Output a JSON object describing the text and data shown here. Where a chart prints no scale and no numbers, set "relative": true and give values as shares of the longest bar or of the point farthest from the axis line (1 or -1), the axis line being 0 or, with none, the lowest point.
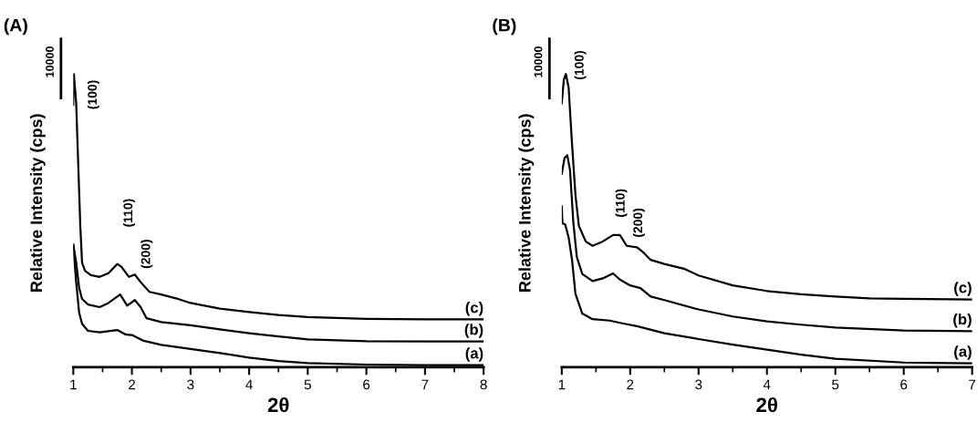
{
  "chart_data": [
    {
      "type": "line",
      "title": "(A)",
      "xlabel": "2θ",
      "ylabel": "Relative Intensity (cps)",
      "relative": true,
      "xlim": [
        1,
        8
      ],
      "xticks": [
        1,
        2,
        3,
        4,
        5,
        6,
        7,
        8
      ],
      "tick_labels": "x",
      "grid": false,
      "legend": false,
      "annotations": [
        "10000",
        "(100)",
        "(110)",
        "(200)"
      ],
      "series": [
        {
          "name": "(a)",
          "color": "#000000",
          "x": [
            1.0,
            1.05,
            1.1,
            1.15,
            1.25,
            1.45,
            1.75,
            1.9,
            2.0,
            2.2,
            2.5,
            3.0,
            3.5,
            4.0,
            4.5,
            5.0,
            6.0,
            7.0,
            8.0
          ],
          "values": [
            0.414,
            0.29,
            0.186,
            0.148,
            0.124,
            0.119,
            0.127,
            0.111,
            0.11,
            0.09,
            0.076,
            0.062,
            0.048,
            0.033,
            0.021,
            0.014,
            0.009,
            0.007,
            0.007
          ]
        },
        {
          "name": "(b)",
          "color": "#000000",
          "x": [
            1.0,
            1.05,
            1.1,
            1.15,
            1.25,
            1.45,
            1.6,
            1.8,
            1.92,
            2.05,
            2.15,
            2.25,
            2.5,
            3.0,
            3.5,
            4.0,
            4.5,
            5.0,
            6.0,
            7.0,
            8.0
          ],
          "values": [
            0.419,
            0.357,
            0.271,
            0.233,
            0.214,
            0.205,
            0.219,
            0.248,
            0.21,
            0.229,
            0.205,
            0.167,
            0.154,
            0.143,
            0.129,
            0.116,
            0.105,
            0.095,
            0.089,
            0.088,
            0.088
          ]
        },
        {
          "name": "(c)",
          "color": "#000000",
          "x": [
            1.0,
            1.01,
            1.05,
            1.08,
            1.12,
            1.15,
            1.2,
            1.3,
            1.45,
            1.6,
            1.75,
            1.82,
            1.95,
            2.05,
            2.15,
            2.3,
            2.5,
            2.75,
            3.0,
            3.5,
            4.0,
            4.5,
            5.0,
            6.0,
            7.0,
            8.0
          ],
          "values": [
            0.895,
            1.0,
            0.9,
            0.719,
            0.481,
            0.357,
            0.329,
            0.314,
            0.308,
            0.321,
            0.352,
            0.343,
            0.308,
            0.316,
            0.29,
            0.257,
            0.248,
            0.235,
            0.219,
            0.2,
            0.188,
            0.178,
            0.171,
            0.165,
            0.163,
            0.163
          ]
        }
      ]
    },
    {
      "type": "line",
      "title": "(B)",
      "xlabel": "2θ",
      "ylabel": "Relative Intensity (cps)",
      "relative": true,
      "xlim": [
        1,
        7
      ],
      "xticks": [
        1,
        2,
        3,
        4,
        5,
        6,
        7
      ],
      "tick_labels": "x",
      "grid": false,
      "legend": false,
      "annotations": [
        "10000",
        "(100)",
        "(110)",
        "(200)"
      ],
      "series": [
        {
          "name": "(a)",
          "color": "#000000",
          "x": [
            1.0,
            1.01,
            1.05,
            1.1,
            1.15,
            1.2,
            1.3,
            1.45,
            1.7,
            1.9,
            2.1,
            2.5,
            3.0,
            3.5,
            4.0,
            4.5,
            5.0,
            6.0,
            7.0
          ],
          "values": [
            0.549,
            0.491,
            0.487,
            0.443,
            0.366,
            0.25,
            0.183,
            0.164,
            0.159,
            0.149,
            0.14,
            0.116,
            0.096,
            0.077,
            0.06,
            0.043,
            0.029,
            0.016,
            0.013
          ]
        },
        {
          "name": "(b)",
          "color": "#000000",
          "x": [
            1.0,
            1.04,
            1.08,
            1.12,
            1.17,
            1.22,
            1.3,
            1.45,
            1.6,
            1.75,
            1.85,
            2.0,
            2.15,
            2.3,
            2.5,
            3.0,
            3.5,
            4.0,
            4.5,
            5.0,
            6.0,
            7.0
          ],
          "values": [
            0.66,
            0.713,
            0.723,
            0.674,
            0.491,
            0.376,
            0.318,
            0.294,
            0.303,
            0.32,
            0.299,
            0.279,
            0.27,
            0.241,
            0.229,
            0.197,
            0.173,
            0.156,
            0.145,
            0.135,
            0.125,
            0.123
          ]
        },
        {
          "name": "(c)",
          "color": "#000000",
          "x": [
            1.0,
            1.03,
            1.06,
            1.1,
            1.15,
            1.2,
            1.25,
            1.35,
            1.45,
            1.6,
            1.75,
            1.85,
            1.95,
            2.1,
            2.2,
            2.3,
            2.5,
            2.8,
            3.0,
            3.5,
            4.0,
            4.5,
            5.0,
            5.5,
            6.0,
            7.0
          ],
          "values": [
            0.9,
            0.981,
            1.0,
            0.954,
            0.761,
            0.588,
            0.482,
            0.429,
            0.414,
            0.429,
            0.451,
            0.451,
            0.414,
            0.409,
            0.39,
            0.366,
            0.352,
            0.335,
            0.313,
            0.279,
            0.26,
            0.249,
            0.241,
            0.235,
            0.233,
            0.231
          ]
        }
      ]
    }
  ]
}
